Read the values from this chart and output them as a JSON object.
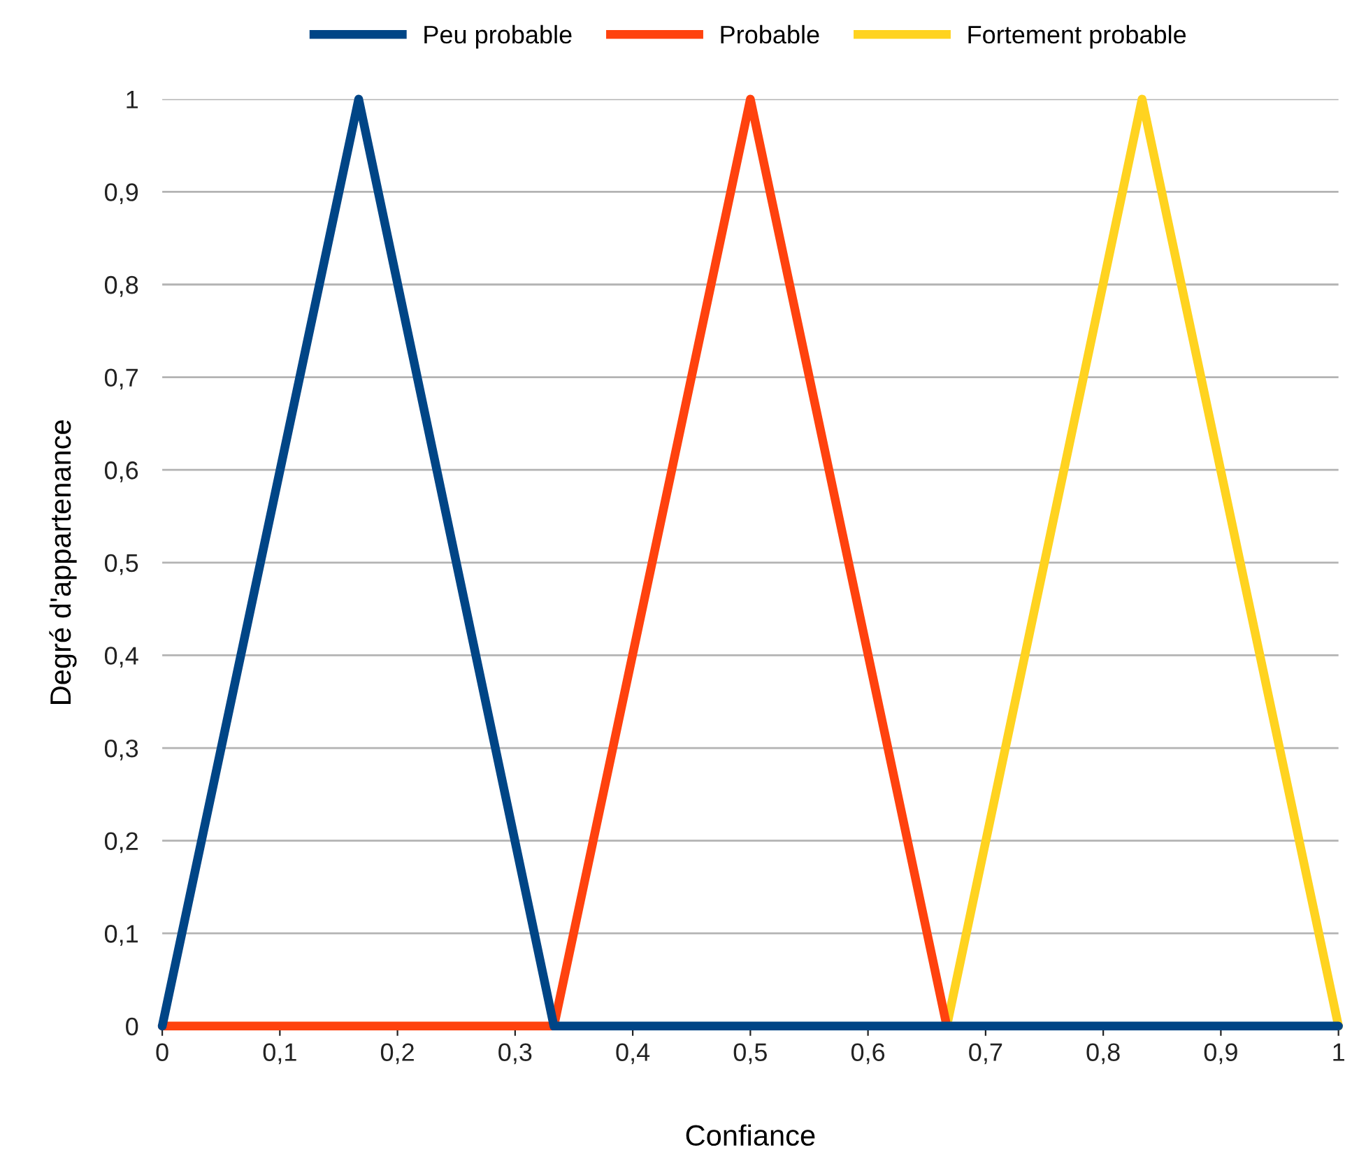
{
  "chart_data": {
    "type": "line",
    "xlabel": "Confiance",
    "ylabel": "Degré d'appartenance",
    "series": [
      {
        "name": "Peu probable",
        "color": "#004586",
        "x": [
          0,
          0.167,
          0.333,
          1
        ],
        "values": [
          0,
          1,
          0,
          0
        ]
      },
      {
        "name": "Probable",
        "color": "#ff420e",
        "x": [
          0,
          0.333,
          0.5,
          0.667
        ],
        "values": [
          0,
          0,
          1,
          0
        ]
      },
      {
        "name": "Fortement probable",
        "color": "#ffd320",
        "x": [
          0.667,
          0.833,
          1
        ],
        "values": [
          0,
          1,
          0
        ]
      }
    ],
    "xlim": [
      0,
      1
    ],
    "ylim": [
      0,
      1
    ],
    "xticks": [
      0,
      {
        "value": 0.1,
        "label": "0,1"
      },
      {
        "value": 0.2,
        "label": "0,2"
      },
      {
        "value": 0.3,
        "label": "0,3"
      },
      {
        "value": 0.4,
        "label": "0,4"
      },
      {
        "value": 0.5,
        "label": "0,5"
      },
      {
        "value": 0.6,
        "label": "0,6"
      },
      {
        "value": 0.7,
        "label": "0,7"
      },
      {
        "value": 0.8,
        "label": "0,8"
      },
      {
        "value": 0.9,
        "label": "0,9"
      },
      1
    ],
    "yticks": [
      0,
      {
        "value": 0.1,
        "label": "0,1"
      },
      {
        "value": 0.2,
        "label": "0,2"
      },
      {
        "value": 0.3,
        "label": "0,3"
      },
      {
        "value": 0.4,
        "label": "0,4"
      },
      {
        "value": 0.5,
        "label": "0,5"
      },
      {
        "value": 0.6,
        "label": "0,6"
      },
      {
        "value": 0.7,
        "label": "0,7"
      },
      {
        "value": 0.8,
        "label": "0,8"
      },
      {
        "value": 0.9,
        "label": "0,9"
      },
      1
    ],
    "grid": "y",
    "legend": "top",
    "marker": "none",
    "line_style": "solid"
  }
}
